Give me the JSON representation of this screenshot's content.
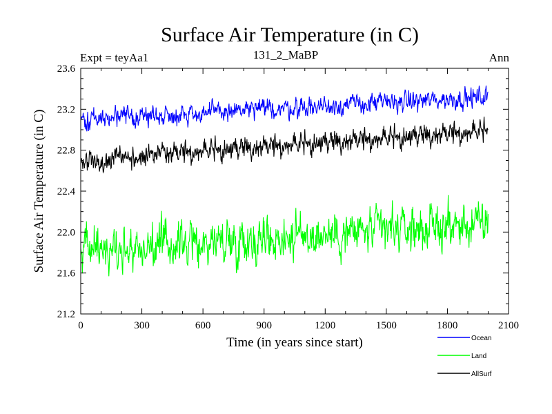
{
  "chart_data": {
    "type": "line",
    "title": "Surface Air Temperature (in C)",
    "subtitle_left": "Expt = teyAa1",
    "subtitle_center": "131_2_MaBP",
    "subtitle_right": "Ann",
    "xlabel": "Time (in years since start)",
    "ylabel": "Surface Air Temperature (in C)",
    "xlim": [
      0,
      2100
    ],
    "ylim": [
      21.2,
      23.6
    ],
    "xticks": [
      0,
      300,
      600,
      900,
      1200,
      1500,
      1800,
      2100
    ],
    "xtick_labels": [
      "0",
      "300",
      "600",
      "900",
      "1200",
      "1500",
      "1800",
      "2100"
    ],
    "yticks": [
      21.2,
      21.6,
      22.0,
      22.4,
      22.8,
      23.2,
      23.6
    ],
    "ytick_labels": [
      "21.2",
      "21.6",
      "22.0",
      "22.4",
      "22.8",
      "23.2",
      "23.6"
    ],
    "x_start": 0,
    "x_end": 2000,
    "series": [
      {
        "name": "Ocean",
        "color": "#0000ff",
        "start_mean": 23.1,
        "end_mean": 23.32,
        "noise_amplitude": 0.09,
        "seed": 11
      },
      {
        "name": "Land",
        "color": "#00ff00",
        "start_mean": 21.82,
        "end_mean": 22.08,
        "noise_amplitude": 0.2,
        "seed": 23
      },
      {
        "name": "AllSurf",
        "color": "#000000",
        "start_mean": 22.68,
        "end_mean": 22.96,
        "noise_amplitude": 0.11,
        "seed": 37
      }
    ]
  }
}
